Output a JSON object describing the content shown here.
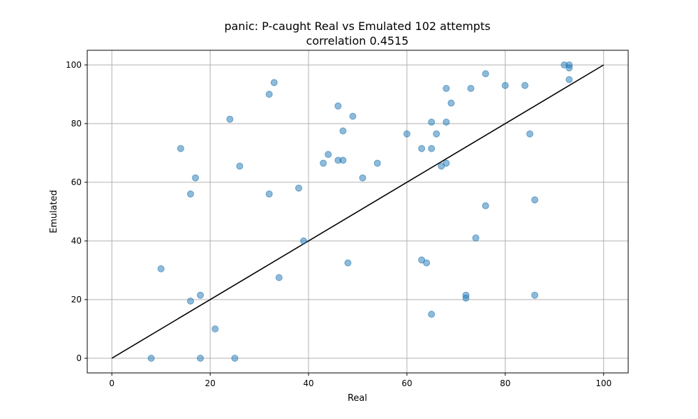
{
  "chart_data": {
    "type": "scatter",
    "title": "panic: P-caught Real vs Emulated 102 attempts",
    "subtitle": "correlation 0.4515",
    "xlabel": "Real",
    "ylabel": "Emulated",
    "xlim": [
      -5,
      105
    ],
    "ylim": [
      -5,
      105
    ],
    "xticks": [
      0,
      20,
      40,
      60,
      80,
      100
    ],
    "yticks": [
      0,
      20,
      40,
      60,
      80,
      100
    ],
    "grid": true,
    "point_color": "#1f77b4",
    "line_color": "#000000",
    "reference_line": {
      "x": [
        0,
        100
      ],
      "y": [
        0,
        100
      ]
    },
    "points": [
      {
        "x": 8,
        "y": 0
      },
      {
        "x": 18,
        "y": 0
      },
      {
        "x": 25,
        "y": 0
      },
      {
        "x": 21,
        "y": 10
      },
      {
        "x": 10,
        "y": 30.5
      },
      {
        "x": 16,
        "y": 19.5
      },
      {
        "x": 18,
        "y": 21.5
      },
      {
        "x": 34,
        "y": 27.5
      },
      {
        "x": 39,
        "y": 40
      },
      {
        "x": 48,
        "y": 32.5
      },
      {
        "x": 16,
        "y": 56
      },
      {
        "x": 17,
        "y": 61.5
      },
      {
        "x": 14,
        "y": 71.5
      },
      {
        "x": 26,
        "y": 65.5
      },
      {
        "x": 32,
        "y": 56
      },
      {
        "x": 38,
        "y": 58
      },
      {
        "x": 24,
        "y": 81.5
      },
      {
        "x": 32,
        "y": 90
      },
      {
        "x": 33,
        "y": 94
      },
      {
        "x": 43,
        "y": 66.5
      },
      {
        "x": 44,
        "y": 69.5
      },
      {
        "x": 46,
        "y": 67.5
      },
      {
        "x": 47,
        "y": 67.5
      },
      {
        "x": 47,
        "y": 77.5
      },
      {
        "x": 46,
        "y": 86
      },
      {
        "x": 49,
        "y": 82.5
      },
      {
        "x": 51,
        "y": 61.5
      },
      {
        "x": 54,
        "y": 66.5
      },
      {
        "x": 60,
        "y": 76.5
      },
      {
        "x": 63,
        "y": 71.5
      },
      {
        "x": 65,
        "y": 71.5
      },
      {
        "x": 65,
        "y": 80.5
      },
      {
        "x": 66,
        "y": 76.5
      },
      {
        "x": 67,
        "y": 65.5
      },
      {
        "x": 68,
        "y": 66.5
      },
      {
        "x": 68,
        "y": 80.5
      },
      {
        "x": 68,
        "y": 92
      },
      {
        "x": 69,
        "y": 87
      },
      {
        "x": 73,
        "y": 92
      },
      {
        "x": 76,
        "y": 97
      },
      {
        "x": 80,
        "y": 93
      },
      {
        "x": 84,
        "y": 93
      },
      {
        "x": 85,
        "y": 76.5
      },
      {
        "x": 92,
        "y": 100
      },
      {
        "x": 93,
        "y": 100
      },
      {
        "x": 93,
        "y": 99
      },
      {
        "x": 93,
        "y": 95
      },
      {
        "x": 76,
        "y": 52
      },
      {
        "x": 86,
        "y": 54
      },
      {
        "x": 74,
        "y": 41
      },
      {
        "x": 63,
        "y": 33.5
      },
      {
        "x": 64,
        "y": 32.5
      },
      {
        "x": 72,
        "y": 21.5
      },
      {
        "x": 72,
        "y": 20.5
      },
      {
        "x": 86,
        "y": 21.5
      },
      {
        "x": 65,
        "y": 15
      }
    ]
  }
}
